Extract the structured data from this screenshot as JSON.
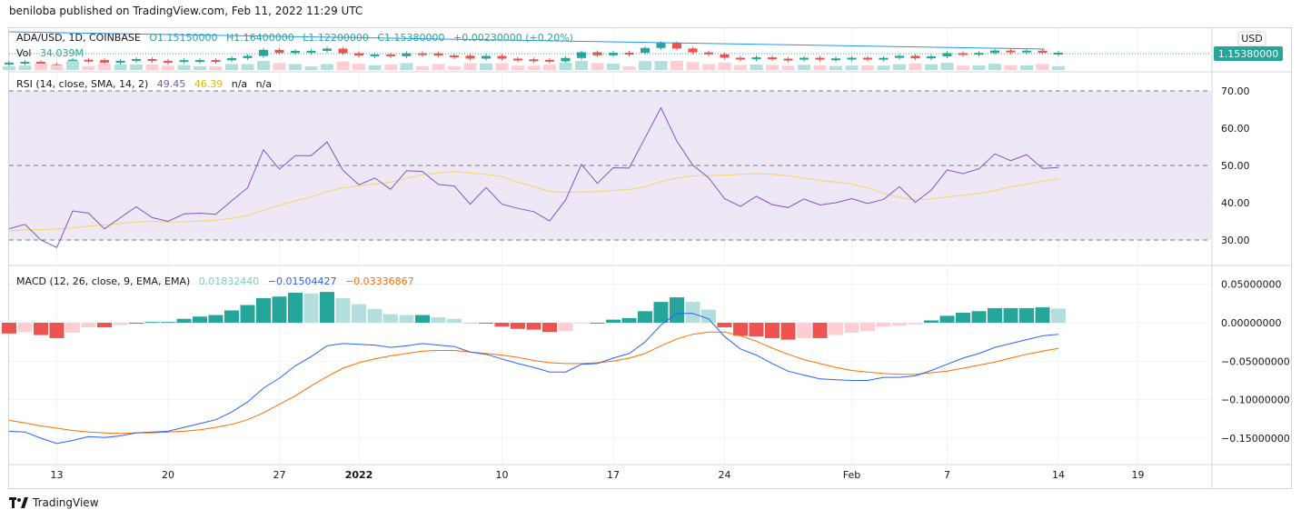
{
  "header": {
    "published": "beniloba published on TradingView.com, Feb 11, 2022 11:29 UTC"
  },
  "footer": {
    "brand": "TradingView"
  },
  "colors": {
    "up": "#26a69a",
    "down": "#ef5350",
    "up_light": "#b2dfdb",
    "down_light": "#ffcdd2",
    "rsi": "#7e57c2",
    "rsi_ma": "#f7d564",
    "rsi_band": "#ede7f6",
    "macd": "#2962ff",
    "signal": "#ff6d00",
    "ma_line": "#2196f3",
    "price_tag": "#26a69a"
  },
  "price_pane": {
    "legend": {
      "symbol": "ADA/USD, 1D, COINBASE",
      "o": "O1.15150000",
      "h": "H1.16400000",
      "l": "L1.12200000",
      "c": "C1.15380000",
      "chg": "+0.00230000 (+0.20%)"
    },
    "volume_legend": {
      "label": "Vol",
      "value": "34.039M"
    },
    "currency": "USD",
    "last_price": "1.15380000"
  },
  "rsi_pane": {
    "legend": {
      "label": "RSI (14, close, SMA, 14, 2)",
      "rsi": "49.45",
      "ma": "46.39",
      "na1": "n/a",
      "na2": "n/a"
    },
    "ticks": [
      "70.00",
      "60.00",
      "50.00",
      "40.00",
      "30.00"
    ]
  },
  "macd_pane": {
    "legend": {
      "label": "MACD (12, 26, close, 9, EMA, EMA)",
      "hist": "0.01832440",
      "macd": "−0.01504427",
      "signal": "−0.03336867"
    },
    "ticks": [
      "0.05000000",
      "0.00000000",
      "−0.05000000",
      "−0.10000000",
      "−0.15000000"
    ]
  },
  "x_axis": {
    "ticks": [
      "13",
      "20",
      "27",
      "2022",
      "10",
      "17",
      "24",
      "Feb",
      "7",
      "14",
      "19"
    ]
  },
  "chart_data": {
    "type": "line",
    "x_start": "2021-12-10",
    "rsi": [
      33.0,
      34.2,
      30.0,
      28.0,
      37.8,
      37.2,
      33.0,
      36.0,
      38.9,
      36.0,
      35.0,
      37.0,
      37.2,
      36.9,
      40.5,
      44.0,
      54.2,
      49.0,
      52.6,
      52.6,
      56.3,
      48.7,
      44.8,
      46.6,
      43.6,
      48.6,
      48.4,
      44.9,
      44.5,
      39.6,
      44.1,
      39.6,
      38.5,
      37.6,
      35.1,
      40.7,
      50.3,
      45.2,
      49.4,
      49.3,
      57.4,
      65.5,
      56.5,
      50.1,
      46.7,
      41.1,
      39.0,
      41.7,
      39.5,
      38.7,
      41.0,
      39.4,
      40.0,
      41.1,
      39.8,
      40.9,
      44.3,
      40.1,
      43.4,
      48.8,
      47.8,
      49.1,
      53.1,
      51.3,
      52.9,
      49.2,
      49.45
    ],
    "rsi_ma": [
      32.5,
      32.7,
      32.8,
      32.9,
      33.3,
      33.7,
      34.0,
      34.4,
      34.8,
      35.0,
      34.8,
      34.9,
      35.1,
      35.3,
      35.8,
      36.5,
      38.0,
      39.3,
      40.5,
      41.5,
      43.0,
      44.0,
      44.5,
      45.0,
      45.5,
      46.5,
      47.5,
      48.0,
      48.4,
      48.0,
      47.6,
      47.0,
      45.5,
      44.3,
      43.0,
      42.8,
      42.9,
      43.0,
      43.3,
      43.6,
      44.3,
      45.7,
      46.6,
      47.2,
      47.3,
      47.4,
      47.6,
      47.8,
      47.6,
      47.2,
      46.6,
      46.0,
      45.5,
      45.0,
      44.0,
      42.5,
      41.5,
      40.7,
      41.0,
      41.5,
      42.0,
      42.5,
      43.3,
      44.3,
      45.0,
      45.8,
      46.39
    ],
    "macd": [
      -0.141,
      -0.142,
      -0.15,
      -0.157,
      -0.153,
      -0.148,
      -0.149,
      -0.147,
      -0.143,
      -0.142,
      -0.141,
      -0.136,
      -0.131,
      -0.126,
      -0.116,
      -0.103,
      -0.085,
      -0.072,
      -0.056,
      -0.044,
      -0.03,
      -0.027,
      -0.028,
      -0.029,
      -0.032,
      -0.03,
      -0.027,
      -0.029,
      -0.031,
      -0.038,
      -0.041,
      -0.047,
      -0.053,
      -0.058,
      -0.064,
      -0.064,
      -0.054,
      -0.053,
      -0.046,
      -0.04,
      -0.025,
      -0.003,
      0.012,
      0.012,
      0.005,
      -0.018,
      -0.034,
      -0.042,
      -0.053,
      -0.063,
      -0.068,
      -0.073,
      -0.074,
      -0.075,
      -0.075,
      -0.071,
      -0.071,
      -0.069,
      -0.062,
      -0.054,
      -0.046,
      -0.04,
      -0.032,
      -0.027,
      -0.022,
      -0.017,
      -0.01504427
    ],
    "signal": [
      -0.127,
      -0.13,
      -0.134,
      -0.137,
      -0.14,
      -0.142,
      -0.143,
      -0.144,
      -0.143,
      -0.143,
      -0.142,
      -0.141,
      -0.139,
      -0.136,
      -0.132,
      -0.126,
      -0.117,
      -0.106,
      -0.095,
      -0.082,
      -0.07,
      -0.059,
      -0.052,
      -0.047,
      -0.043,
      -0.04,
      -0.037,
      -0.036,
      -0.036,
      -0.038,
      -0.04,
      -0.042,
      -0.045,
      -0.049,
      -0.052,
      -0.053,
      -0.053,
      -0.052,
      -0.05,
      -0.046,
      -0.04,
      -0.03,
      -0.021,
      -0.015,
      -0.012,
      -0.012,
      -0.017,
      -0.024,
      -0.033,
      -0.041,
      -0.048,
      -0.053,
      -0.058,
      -0.062,
      -0.064,
      -0.066,
      -0.067,
      -0.067,
      -0.065,
      -0.063,
      -0.059,
      -0.055,
      -0.051,
      -0.046,
      -0.041,
      -0.037,
      -0.03336867
    ],
    "histogram": [
      -0.014,
      -0.012,
      -0.016,
      -0.02,
      -0.013,
      -0.006,
      -0.006,
      -0.003,
      0.0,
      0.001,
      0.001,
      0.005,
      0.008,
      0.01,
      0.016,
      0.023,
      0.032,
      0.034,
      0.039,
      0.038,
      0.04,
      0.032,
      0.024,
      0.018,
      0.011,
      0.01,
      0.01,
      0.007,
      0.005,
      0.0,
      -0.001,
      -0.005,
      -0.008,
      -0.009,
      -0.012,
      -0.011,
      -0.001,
      -0.001,
      0.004,
      0.006,
      0.015,
      0.027,
      0.033,
      0.027,
      0.017,
      -0.006,
      -0.017,
      -0.018,
      -0.02,
      -0.022,
      -0.02,
      -0.02,
      -0.016,
      -0.013,
      -0.011,
      -0.005,
      -0.004,
      -0.002,
      0.003,
      0.009,
      0.013,
      0.015,
      0.019,
      0.019,
      0.019,
      0.02,
      0.0183244
    ],
    "rsi_ylim": [
      27,
      73
    ],
    "macd_ylim": [
      -0.17,
      0.055
    ]
  }
}
